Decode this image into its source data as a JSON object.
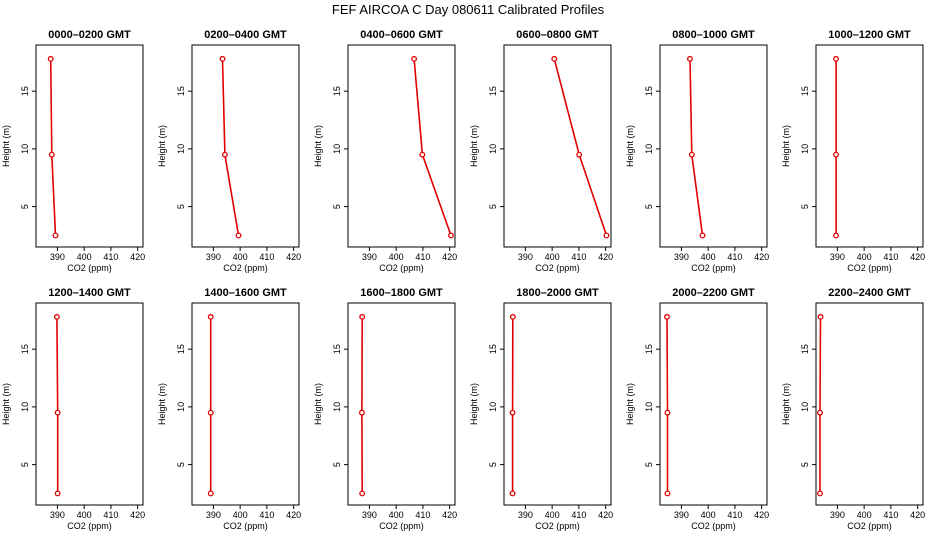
{
  "figure": {
    "title": "FEF  AIRCOA C  Day 080611  Calibrated Profiles"
  },
  "colors": {
    "series": "#e00000",
    "axis": "#000000",
    "background": "#ffffff"
  },
  "chart_data": [
    {
      "type": "line",
      "title": "0000–0200 GMT",
      "xlabel": "CO2 (ppm)",
      "ylabel": "Height (m)",
      "xlim": [
        382,
        422
      ],
      "ylim": [
        1.5,
        19
      ],
      "xticks": [
        390,
        400,
        410,
        420
      ],
      "yticks": [
        5,
        10,
        15
      ],
      "x": [
        387.5,
        387.9,
        389.3
      ],
      "y": [
        17.8,
        9.5,
        2.5
      ]
    },
    {
      "type": "line",
      "title": "0200–0400 GMT",
      "xlabel": "CO2 (ppm)",
      "ylabel": "Height (m)",
      "xlim": [
        382,
        422
      ],
      "ylim": [
        1.5,
        19
      ],
      "xticks": [
        390,
        400,
        410,
        420
      ],
      "yticks": [
        5,
        10,
        15
      ],
      "x": [
        393.4,
        394.3,
        399.4
      ],
      "y": [
        17.8,
        9.5,
        2.5
      ]
    },
    {
      "type": "line",
      "title": "0400–0600 GMT",
      "xlabel": "CO2 (ppm)",
      "ylabel": "Height (m)",
      "xlim": [
        382,
        422
      ],
      "ylim": [
        1.5,
        19
      ],
      "xticks": [
        390,
        400,
        410,
        420
      ],
      "yticks": [
        5,
        10,
        15
      ],
      "x": [
        406.7,
        409.8,
        420.5
      ],
      "y": [
        17.8,
        9.5,
        2.5
      ]
    },
    {
      "type": "line",
      "title": "0600–0800 GMT",
      "xlabel": "CO2 (ppm)",
      "ylabel": "Height (m)",
      "xlim": [
        382,
        422
      ],
      "ylim": [
        1.5,
        19
      ],
      "xticks": [
        390,
        400,
        410,
        420
      ],
      "yticks": [
        5,
        10,
        15
      ],
      "x": [
        400.8,
        410.1,
        420.3
      ],
      "y": [
        17.8,
        9.5,
        2.5
      ]
    },
    {
      "type": "line",
      "title": "0800–1000 GMT",
      "xlabel": "CO2 (ppm)",
      "ylabel": "Height (m)",
      "xlim": [
        382,
        422
      ],
      "ylim": [
        1.5,
        19
      ],
      "xticks": [
        390,
        400,
        410,
        420
      ],
      "yticks": [
        5,
        10,
        15
      ],
      "x": [
        393.2,
        393.9,
        397.9
      ],
      "y": [
        17.8,
        9.5,
        2.5
      ]
    },
    {
      "type": "line",
      "title": "1000–1200 GMT",
      "xlabel": "CO2 (ppm)",
      "ylabel": "Height (m)",
      "xlim": [
        382,
        422
      ],
      "ylim": [
        1.5,
        19
      ],
      "xticks": [
        390,
        400,
        410,
        420
      ],
      "yticks": [
        5,
        10,
        15
      ],
      "x": [
        389.5,
        389.5,
        389.5
      ],
      "y": [
        17.8,
        9.5,
        2.5
      ]
    },
    {
      "type": "line",
      "title": "1200–1400 GMT",
      "xlabel": "CO2 (ppm)",
      "ylabel": "Height (m)",
      "xlim": [
        382,
        422
      ],
      "ylim": [
        1.5,
        19
      ],
      "xticks": [
        390,
        400,
        410,
        420
      ],
      "yticks": [
        5,
        10,
        15
      ],
      "x": [
        389.8,
        390.1,
        390.1
      ],
      "y": [
        17.8,
        9.5,
        2.5
      ]
    },
    {
      "type": "line",
      "title": "1400–1600 GMT",
      "xlabel": "CO2 (ppm)",
      "ylabel": "Height (m)",
      "xlim": [
        382,
        422
      ],
      "ylim": [
        1.5,
        19
      ],
      "xticks": [
        390,
        400,
        410,
        420
      ],
      "yticks": [
        5,
        10,
        15
      ],
      "x": [
        389.0,
        389.0,
        389.0
      ],
      "y": [
        17.8,
        9.5,
        2.5
      ]
    },
    {
      "type": "line",
      "title": "1600–1800 GMT",
      "xlabel": "CO2 (ppm)",
      "ylabel": "Height (m)",
      "xlim": [
        382,
        422
      ],
      "ylim": [
        1.5,
        19
      ],
      "xticks": [
        390,
        400,
        410,
        420
      ],
      "yticks": [
        5,
        10,
        15
      ],
      "x": [
        387.3,
        387.2,
        387.3
      ],
      "y": [
        17.8,
        9.5,
        2.5
      ]
    },
    {
      "type": "line",
      "title": "1800–2000 GMT",
      "xlabel": "CO2 (ppm)",
      "ylabel": "Height (m)",
      "xlim": [
        382,
        422
      ],
      "ylim": [
        1.5,
        19
      ],
      "xticks": [
        390,
        400,
        410,
        420
      ],
      "yticks": [
        5,
        10,
        15
      ],
      "x": [
        385.3,
        385.2,
        385.2
      ],
      "y": [
        17.8,
        9.5,
        2.5
      ]
    },
    {
      "type": "line",
      "title": "2000–2200 GMT",
      "xlabel": "CO2 (ppm)",
      "ylabel": "Height (m)",
      "xlim": [
        382,
        422
      ],
      "ylim": [
        1.5,
        19
      ],
      "xticks": [
        390,
        400,
        410,
        420
      ],
      "yticks": [
        5,
        10,
        15
      ],
      "x": [
        384.6,
        384.8,
        384.8
      ],
      "y": [
        17.8,
        9.5,
        2.5
      ]
    },
    {
      "type": "line",
      "title": "2200–2400 GMT",
      "xlabel": "CO2 (ppm)",
      "ylabel": "Height (m)",
      "xlim": [
        382,
        422
      ],
      "ylim": [
        1.5,
        19
      ],
      "xticks": [
        390,
        400,
        410,
        420
      ],
      "yticks": [
        5,
        10,
        15
      ],
      "x": [
        383.7,
        383.5,
        383.5
      ],
      "y": [
        17.8,
        9.5,
        2.5
      ]
    }
  ]
}
